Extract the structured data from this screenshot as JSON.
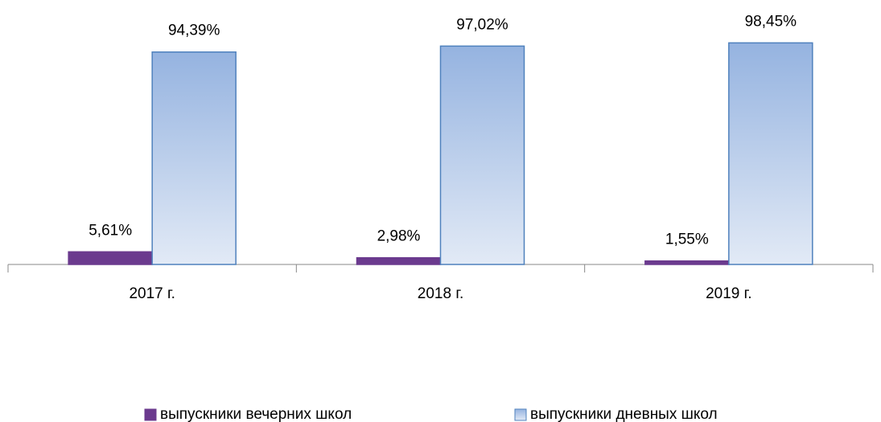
{
  "chart_data": {
    "type": "bar",
    "categories": [
      "2017 г.",
      "2018 г.",
      "2019 г."
    ],
    "series": [
      {
        "name": "выпускники вечерних школ",
        "color": "#6b3a8e",
        "values": [
          5.61,
          2.98,
          1.55
        ],
        "value_labels": [
          "5,61%",
          "2,98%",
          "1,55%"
        ]
      },
      {
        "name": "выпускники дневных школ",
        "color": "#9bb7e0",
        "values": [
          94.39,
          97.02,
          98.45
        ],
        "value_labels": [
          "94,39%",
          "97,02%",
          "98,45%"
        ]
      }
    ]
  }
}
